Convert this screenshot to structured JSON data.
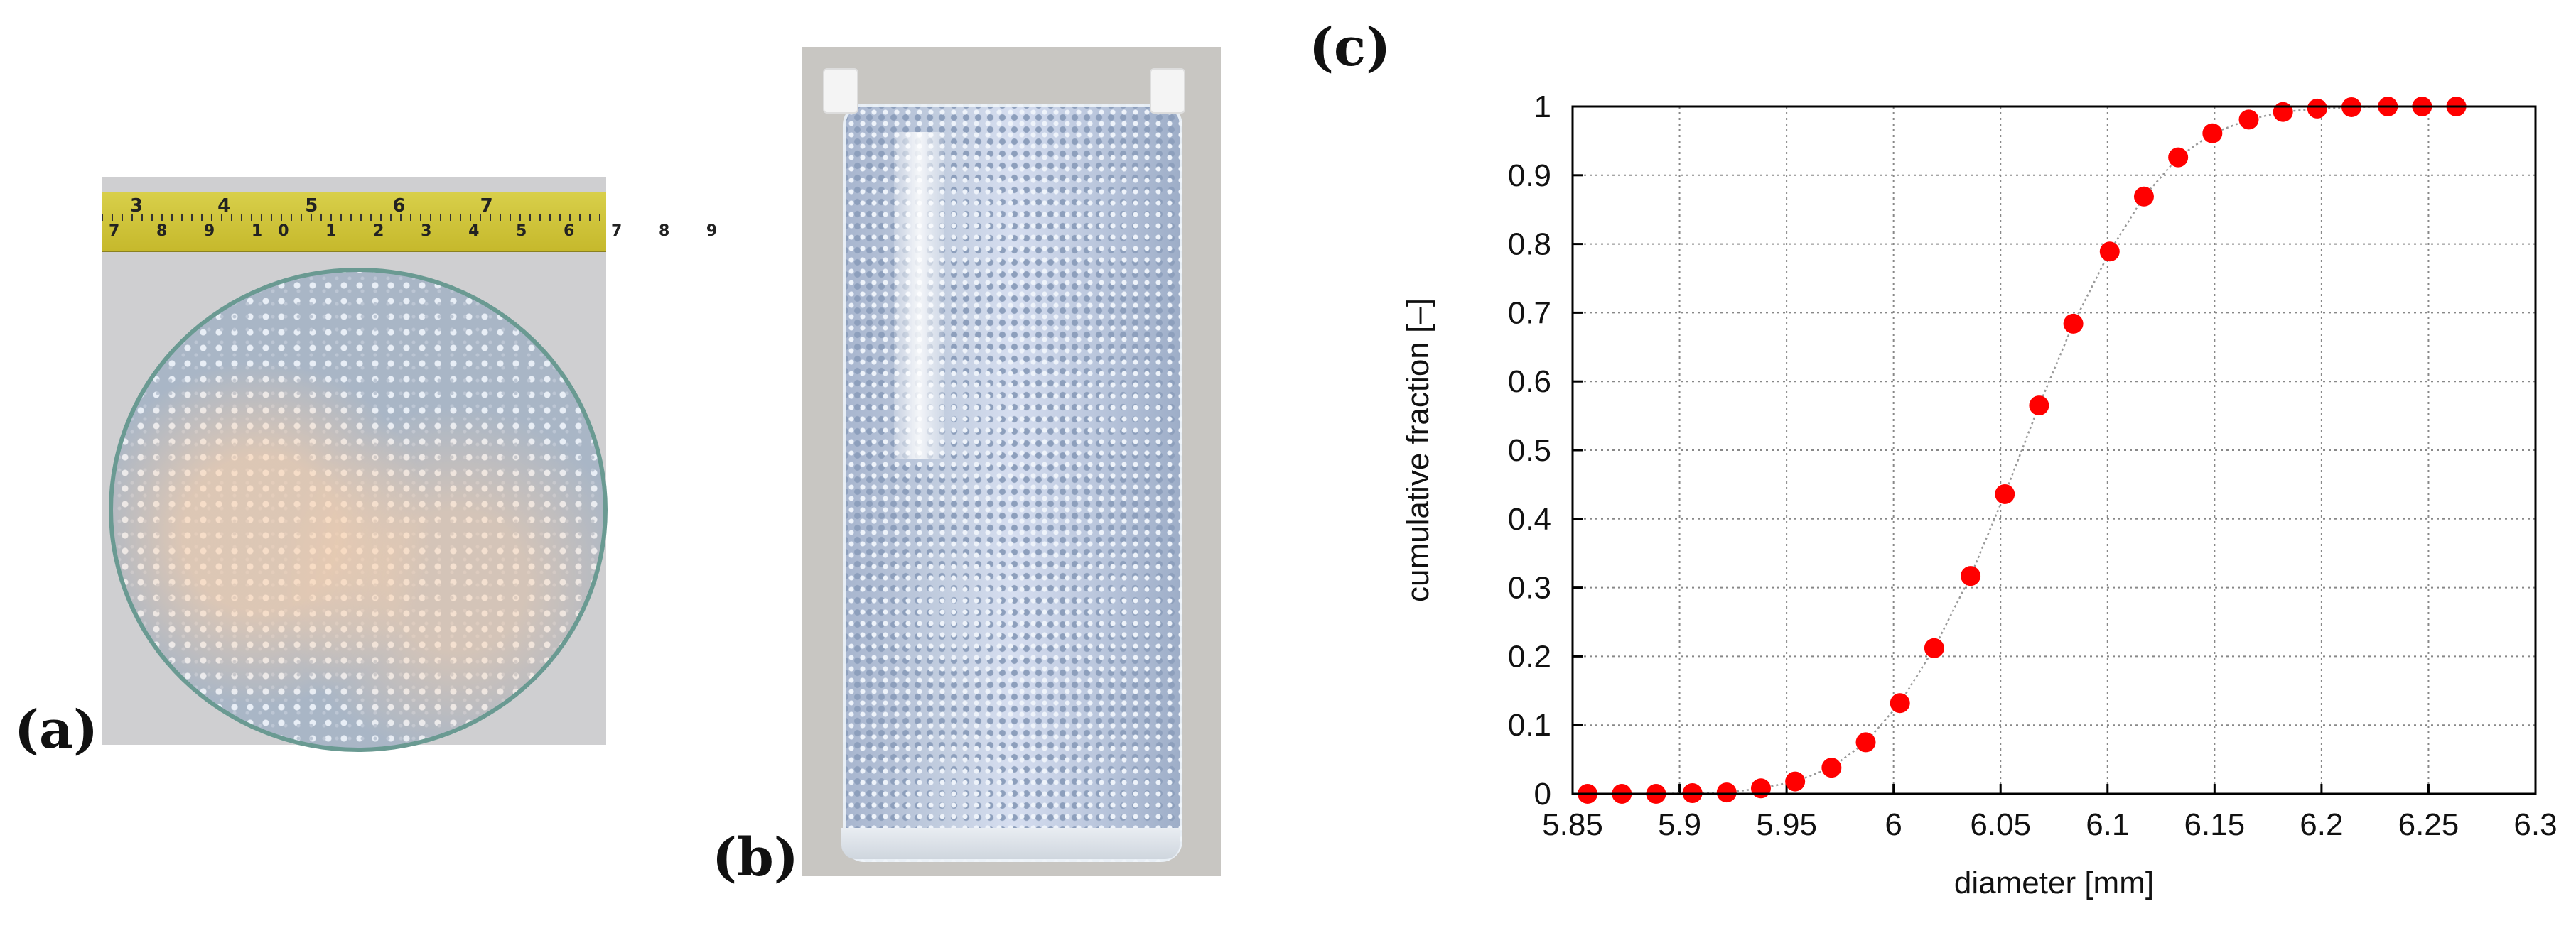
{
  "panels": {
    "a": "(a)",
    "b": "(b)",
    "c": "(c)"
  },
  "tape": {
    "top_marks": "3   4   5   6   7",
    "bottom_marks": "7 8 9 10 1 2 3 4 5 6 7 8 9"
  },
  "chart_data": {
    "type": "scatter",
    "xlabel": "diameter [mm]",
    "ylabel": "cumulative fraction [–]",
    "xlim": [
      5.85,
      6.3
    ],
    "ylim": [
      0,
      1
    ],
    "xticks": [
      "5.85",
      "5.9",
      "5.95",
      "6",
      "6.05",
      "6.1",
      "6.15",
      "6.2",
      "6.25",
      "6.3"
    ],
    "yticks": [
      "0",
      "0.1",
      "0.2",
      "0.3",
      "0.4",
      "0.5",
      "0.6",
      "0.7",
      "0.8",
      "0.9",
      "1"
    ],
    "grid": true,
    "marker_color": "#ff0000",
    "line_color": "#999999",
    "x": [
      5.857,
      5.873,
      5.889,
      5.906,
      5.922,
      5.938,
      5.954,
      5.971,
      5.987,
      6.003,
      6.019,
      6.036,
      6.052,
      6.068,
      6.084,
      6.101,
      6.117,
      6.133,
      6.149,
      6.166,
      6.182,
      6.198,
      6.214,
      6.231,
      6.247,
      6.263
    ],
    "y": [
      0.0,
      0.0,
      0.0,
      0.001,
      0.002,
      0.008,
      0.018,
      0.038,
      0.075,
      0.132,
      0.212,
      0.317,
      0.436,
      0.565,
      0.684,
      0.789,
      0.869,
      0.926,
      0.961,
      0.981,
      0.992,
      0.997,
      0.999,
      1.0,
      1.0,
      1.0
    ]
  }
}
